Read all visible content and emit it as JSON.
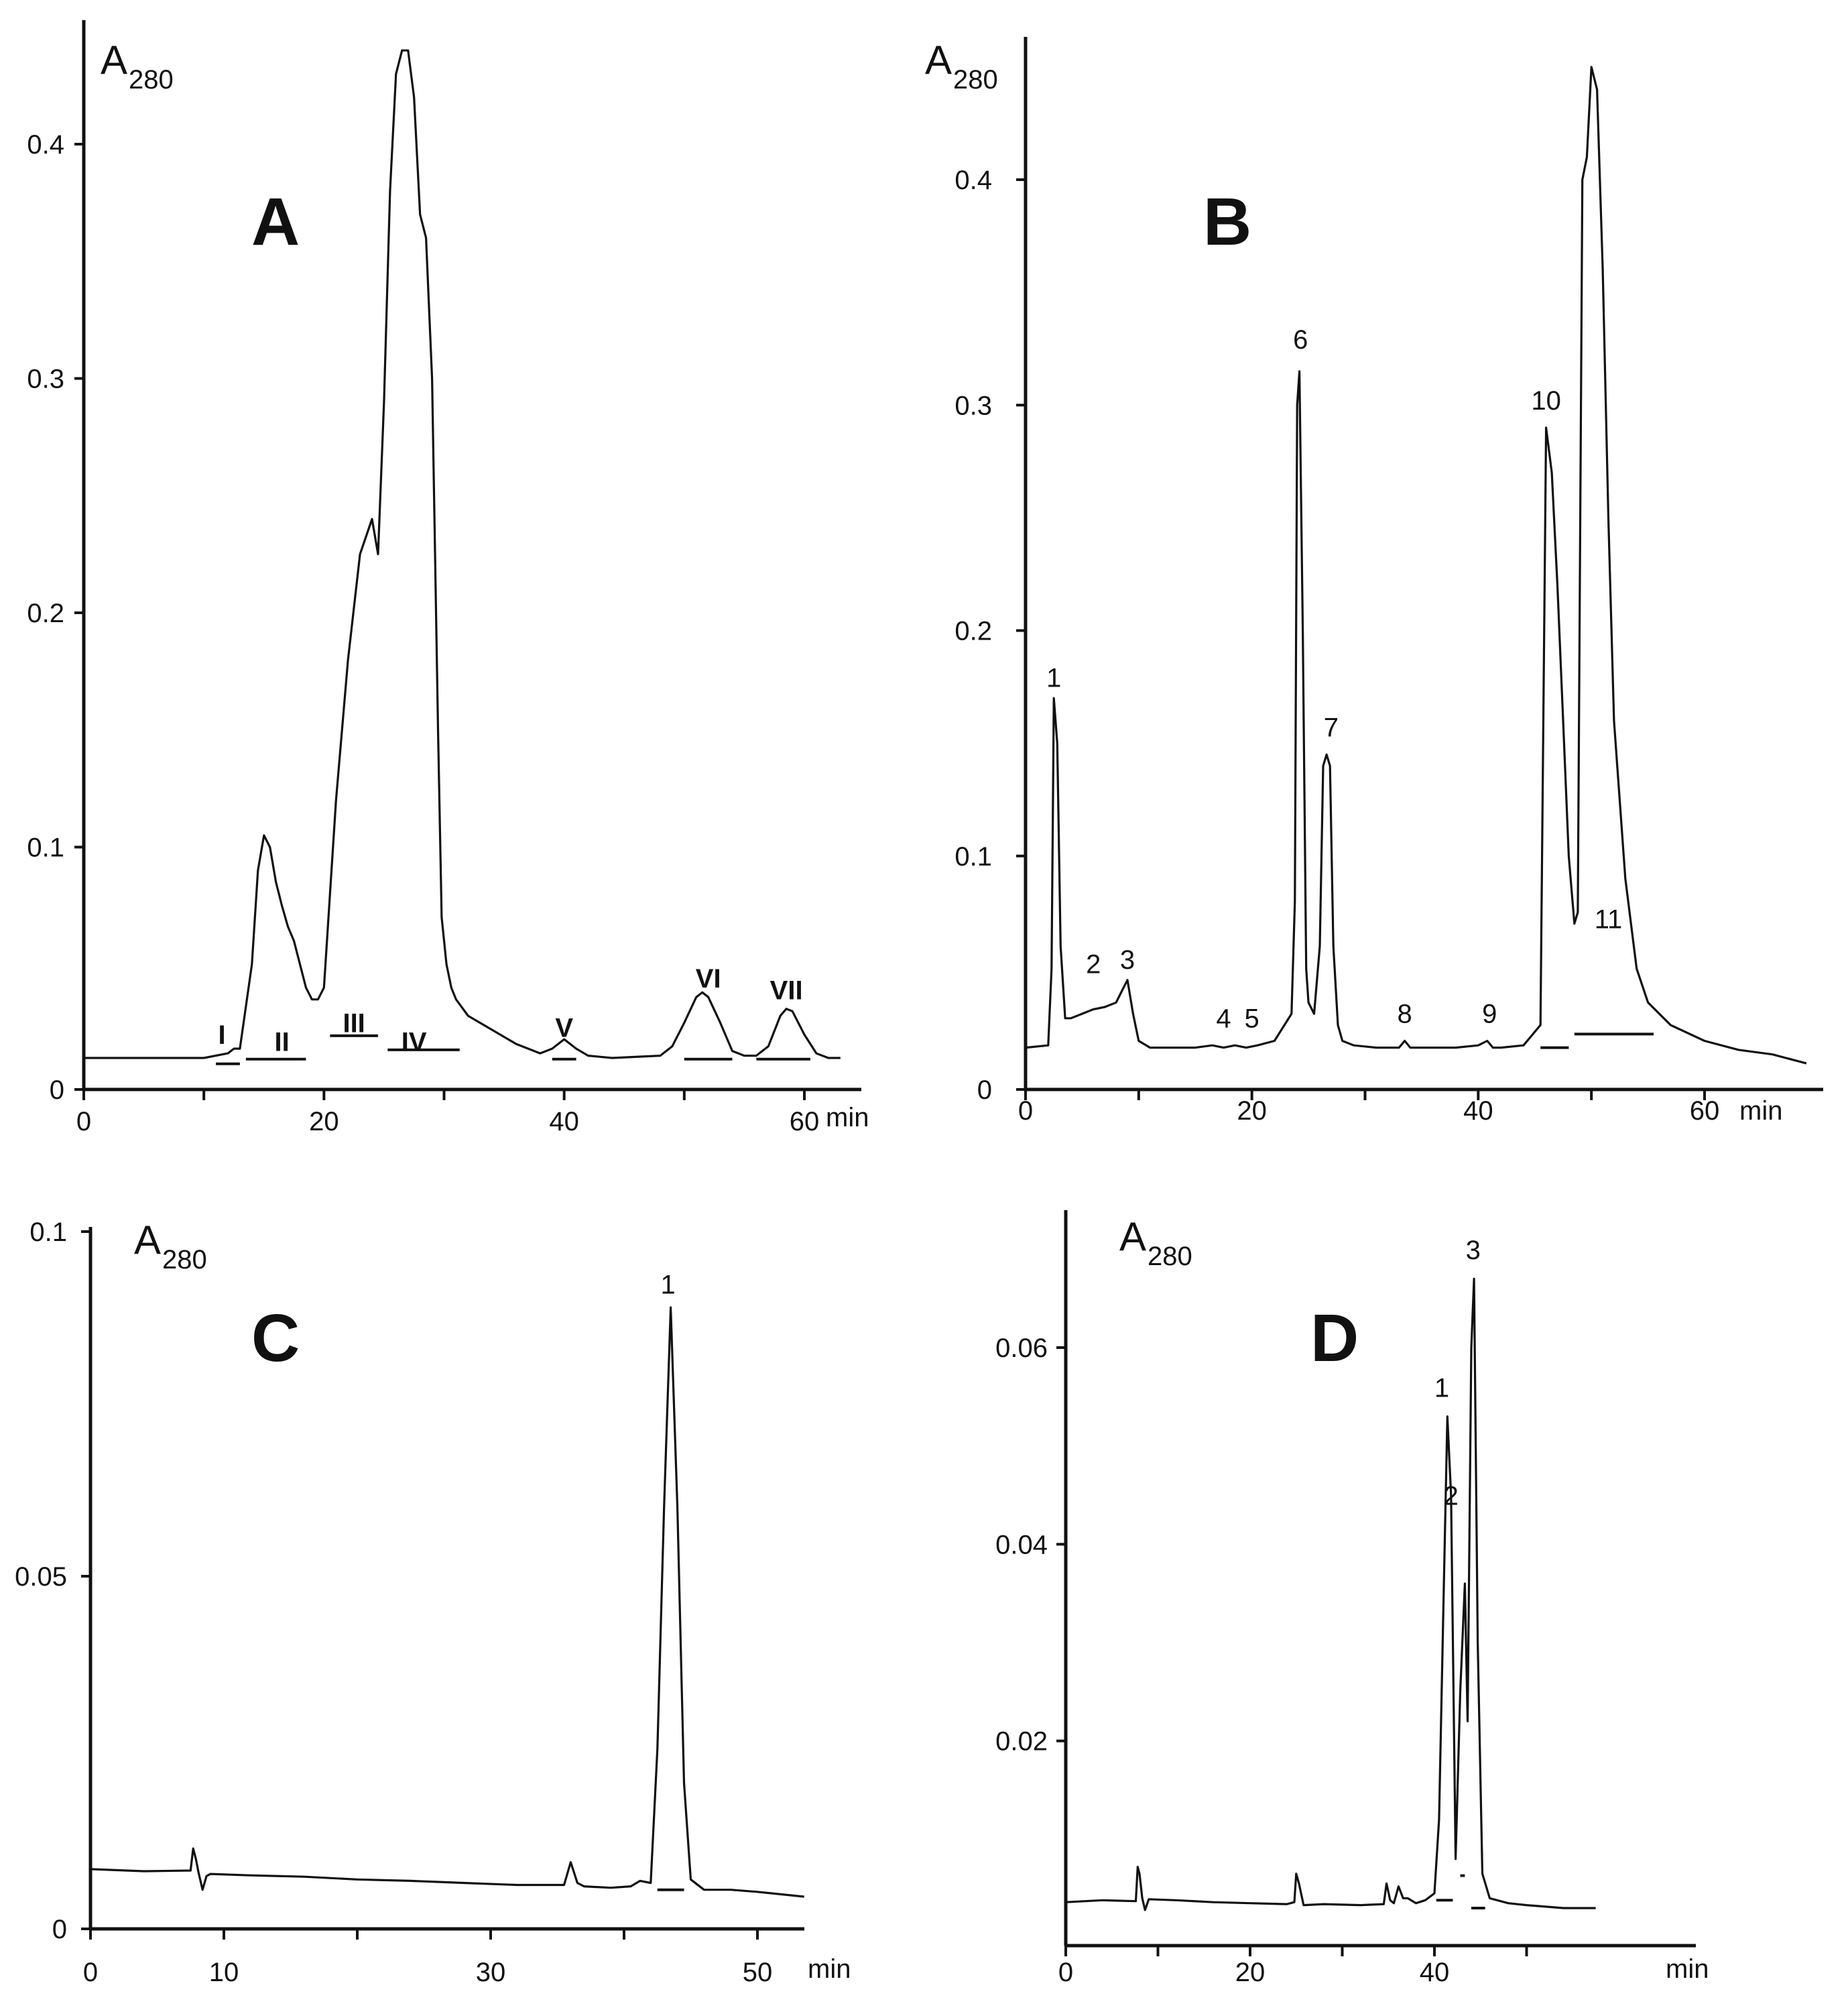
{
  "figure": {
    "chart_data": [
      {
        "panel": "A",
        "type": "line",
        "panel_label": "A",
        "ylabel_main": "A",
        "ylabel_sub": "280",
        "x_unit": "min",
        "xlim": [
          0,
          66
        ],
        "ylim": [
          0,
          0.45
        ],
        "x_ticks": [
          0,
          20,
          40,
          60
        ],
        "x_tick_labels": [
          "0",
          "20",
          "40",
          "60"
        ],
        "x_minor_ticks": [
          10,
          30,
          50
        ],
        "y_ticks": [
          0,
          0.1,
          0.2,
          0.3,
          0.4
        ],
        "y_tick_labels": [
          "0",
          "0.1",
          "0.2",
          "0.3",
          "0.4"
        ],
        "x": [
          0,
          10,
          12,
          12.5,
          13,
          14,
          14.5,
          15,
          15.5,
          16,
          16.5,
          17,
          17.5,
          18,
          18.5,
          19,
          19.5,
          20,
          20.5,
          21,
          22,
          23,
          24,
          24.5,
          25,
          25.5,
          26,
          26.5,
          27,
          27.5,
          28,
          28.5,
          29,
          29.5,
          29.8,
          30.2,
          30.6,
          31,
          32,
          34,
          36,
          38,
          39,
          40,
          41,
          42,
          44,
          48,
          49,
          50,
          51,
          51.5,
          52,
          53,
          54,
          55,
          56,
          57,
          58,
          58.5,
          59,
          60,
          61,
          62,
          63
        ],
        "y": [
          0.01,
          0.01,
          0.012,
          0.014,
          0.014,
          0.05,
          0.09,
          0.105,
          0.1,
          0.085,
          0.075,
          0.066,
          0.06,
          0.05,
          0.04,
          0.035,
          0.035,
          0.04,
          0.08,
          0.12,
          0.18,
          0.225,
          0.24,
          0.225,
          0.29,
          0.38,
          0.43,
          0.44,
          0.44,
          0.42,
          0.37,
          0.36,
          0.3,
          0.15,
          0.07,
          0.05,
          0.04,
          0.035,
          0.028,
          0.022,
          0.016,
          0.012,
          0.014,
          0.018,
          0.014,
          0.011,
          0.01,
          0.011,
          0.015,
          0.025,
          0.036,
          0.038,
          0.036,
          0.025,
          0.013,
          0.011,
          0.011,
          0.015,
          0.028,
          0.031,
          0.03,
          0.02,
          0.012,
          0.01,
          0.01
        ],
        "fraction_labels": [
          {
            "text": "I",
            "x": 11.5,
            "y": 0.016
          },
          {
            "text": "II",
            "x": 16.5,
            "y": 0.013
          },
          {
            "text": "III",
            "x": 22.5,
            "y": 0.021
          },
          {
            "text": "IV",
            "x": 27.5,
            "y": 0.013
          },
          {
            "text": "V",
            "x": 40,
            "y": 0.019
          },
          {
            "text": "VI",
            "x": 52,
            "y": 0.04
          },
          {
            "text": "VII",
            "x": 58.5,
            "y": 0.035
          }
        ],
        "fraction_bars": [
          [
            11,
            13
          ],
          [
            13.5,
            18.5
          ],
          [
            20.5,
            24.5
          ],
          [
            25.3,
            31.3
          ],
          [
            39,
            41
          ],
          [
            50,
            54
          ],
          [
            56,
            60.5
          ]
        ],
        "fraction_bar_y": [
          0.0075,
          0.0095,
          0.0195,
          0.0135,
          0.0095,
          0.0095,
          0.0095
        ]
      },
      {
        "panel": "B",
        "type": "line",
        "panel_label": "B",
        "ylabel_main": "A",
        "ylabel_sub": "280",
        "x_unit": "min",
        "xlim": [
          0,
          71
        ],
        "ylim": [
          0,
          0.47
        ],
        "x_ticks": [
          0,
          20,
          40,
          60
        ],
        "x_tick_labels": [
          "0",
          "20",
          "40",
          "60"
        ],
        "x_minor_ticks": [
          10,
          30,
          50
        ],
        "y_ticks": [
          0,
          0.1,
          0.2,
          0.3,
          0.4
        ],
        "y_tick_labels": [
          "0",
          "0.1",
          "0.2",
          "0.3",
          "0.4"
        ],
        "x": [
          0,
          2,
          2.3,
          2.5,
          2.8,
          3.1,
          3.5,
          4,
          5,
          6,
          7,
          8,
          8.5,
          9,
          9.5,
          10,
          11,
          13,
          15,
          16.5,
          17.5,
          18.5,
          19.5,
          20.5,
          22,
          23.5,
          23.8,
          24,
          24.2,
          24.5,
          24.8,
          25,
          25.5,
          26,
          26.3,
          26.6,
          26.9,
          27.2,
          27.6,
          28,
          29,
          31,
          33,
          33.5,
          34,
          36,
          38,
          40,
          40.8,
          41.3,
          42,
          44,
          45.5,
          46,
          46.5,
          47,
          47.5,
          48,
          48.5,
          48.8,
          49.2,
          49.6,
          50,
          50.5,
          51,
          51.5,
          52,
          53,
          54,
          55,
          57,
          60,
          63,
          66,
          69
        ],
        "y": [
          0.015,
          0.016,
          0.05,
          0.17,
          0.15,
          0.06,
          0.028,
          0.028,
          0.03,
          0.032,
          0.033,
          0.035,
          0.04,
          0.045,
          0.03,
          0.018,
          0.015,
          0.015,
          0.015,
          0.016,
          0.015,
          0.016,
          0.015,
          0.016,
          0.018,
          0.03,
          0.08,
          0.3,
          0.315,
          0.2,
          0.05,
          0.035,
          0.03,
          0.06,
          0.14,
          0.145,
          0.14,
          0.06,
          0.025,
          0.018,
          0.016,
          0.015,
          0.015,
          0.018,
          0.015,
          0.015,
          0.015,
          0.016,
          0.018,
          0.015,
          0.015,
          0.016,
          0.025,
          0.29,
          0.27,
          0.22,
          0.16,
          0.1,
          0.07,
          0.075,
          0.4,
          0.41,
          0.45,
          0.44,
          0.36,
          0.25,
          0.16,
          0.09,
          0.05,
          0.035,
          0.025,
          0.018,
          0.014,
          0.012,
          0.008
        ],
        "peak_labels": [
          {
            "text": "1",
            "x": 2.5,
            "y": 0.175
          },
          {
            "text": "2",
            "x": 6,
            "y": 0.048
          },
          {
            "text": "3",
            "x": 9,
            "y": 0.05
          },
          {
            "text": "4",
            "x": 17.5,
            "y": 0.024
          },
          {
            "text": "5",
            "x": 20,
            "y": 0.024
          },
          {
            "text": "6",
            "x": 24.3,
            "y": 0.325
          },
          {
            "text": "7",
            "x": 27,
            "y": 0.153
          },
          {
            "text": "8",
            "x": 33.5,
            "y": 0.026
          },
          {
            "text": "9",
            "x": 41,
            "y": 0.026
          },
          {
            "text": "10",
            "x": 46,
            "y": 0.298
          },
          {
            "text": "11",
            "x": 51.5,
            "y": 0.068
          }
        ],
        "fraction_bars": [
          [
            45.5,
            48
          ],
          [
            48.5,
            55.5
          ]
        ],
        "fraction_bar_y": [
          0.015,
          0.021
        ]
      },
      {
        "panel": "C",
        "type": "line",
        "panel_label": "C",
        "ylabel_main": "A",
        "ylabel_sub": "280",
        "x_unit": "min",
        "xlim": [
          0,
          55
        ],
        "ylim": [
          0,
          0.102
        ],
        "x_ticks": [
          0,
          10,
          30,
          50
        ],
        "x_tick_labels": [
          "0",
          "10",
          "30",
          "50"
        ],
        "x_minor_ticks": [
          20,
          40
        ],
        "y_ticks": [
          0,
          0.05,
          0.1
        ],
        "y_tick_labels": [
          "0",
          "0.05",
          "0.1"
        ],
        "x": [
          0,
          4,
          7.5,
          7.7,
          7.9,
          8.1,
          8.4,
          8.7,
          9,
          12,
          16,
          20,
          24,
          28,
          32,
          34,
          35.5,
          36,
          36.5,
          37,
          39,
          40.5,
          41.2,
          42,
          42.5,
          43,
          43.5,
          44,
          44.5,
          45,
          46,
          48,
          50,
          53.5
        ],
        "y": [
          0.0075,
          0.0072,
          0.0073,
          0.0105,
          0.009,
          0.007,
          0.0045,
          0.0065,
          0.0068,
          0.0066,
          0.0064,
          0.006,
          0.0058,
          0.0055,
          0.0052,
          0.0052,
          0.0052,
          0.0085,
          0.0055,
          0.005,
          0.0048,
          0.005,
          0.0058,
          0.0055,
          0.025,
          0.06,
          0.089,
          0.06,
          0.02,
          0.006,
          0.0045,
          0.0045,
          0.0042,
          0.0035
        ],
        "peak_labels": [
          {
            "text": "1",
            "x": 43.3,
            "y": 0.091
          }
        ],
        "fraction_bars": [
          [
            42.5,
            44.5
          ]
        ],
        "fraction_bar_y": [
          0.0045
        ]
      },
      {
        "panel": "D",
        "type": "line",
        "panel_label": "D",
        "ylabel_main": "A",
        "ylabel_sub": "280",
        "x_unit": "min",
        "xlim": [
          0,
          58
        ],
        "ylim": [
          0,
          0.07
        ],
        "x_ticks": [
          0,
          20,
          40
        ],
        "x_tick_labels": [
          "0",
          "20",
          "40"
        ],
        "x_minor_ticks": [
          10,
          30,
          50
        ],
        "y_ticks": [
          0.02,
          0.04,
          0.06
        ],
        "y_tick_labels": [
          "0.02",
          "0.04",
          "0.06"
        ],
        "x": [
          0,
          4,
          7.6,
          7.8,
          8,
          8.3,
          8.6,
          9,
          12,
          16,
          20,
          24,
          24.8,
          25,
          25.3,
          25.8,
          28,
          32,
          34.5,
          34.8,
          35.2,
          35.6,
          36.1,
          36.6,
          37.1,
          38,
          39,
          40,
          40.5,
          41,
          41.4,
          41.8,
          42.3,
          42.8,
          43.3,
          43.6,
          44,
          44.3,
          44.7,
          45.2,
          46,
          48,
          50,
          54,
          57.5
        ],
        "y": [
          0.0036,
          0.0038,
          0.0037,
          0.0072,
          0.0065,
          0.004,
          0.0028,
          0.0039,
          0.0038,
          0.0036,
          0.0035,
          0.0034,
          0.0036,
          0.0065,
          0.0055,
          0.0033,
          0.0034,
          0.0033,
          0.0034,
          0.0055,
          0.0038,
          0.0035,
          0.0052,
          0.004,
          0.004,
          0.0035,
          0.0038,
          0.0045,
          0.012,
          0.035,
          0.053,
          0.045,
          0.008,
          0.025,
          0.036,
          0.022,
          0.06,
          0.067,
          0.03,
          0.0065,
          0.004,
          0.0035,
          0.0033,
          0.003,
          0.003
        ],
        "peak_labels": [
          {
            "text": "1",
            "x": 40.8,
            "y": 0.055
          },
          {
            "text": "2",
            "x": 41.8,
            "y": 0.044
          },
          {
            "text": "3",
            "x": 44.2,
            "y": 0.069
          }
        ],
        "fraction_bars": [
          [
            40.2,
            42
          ],
          [
            42.8,
            43.3
          ],
          [
            44,
            45.5
          ]
        ],
        "fraction_bar_y": [
          0.0038,
          0.0063,
          0.003
        ]
      }
    ]
  }
}
